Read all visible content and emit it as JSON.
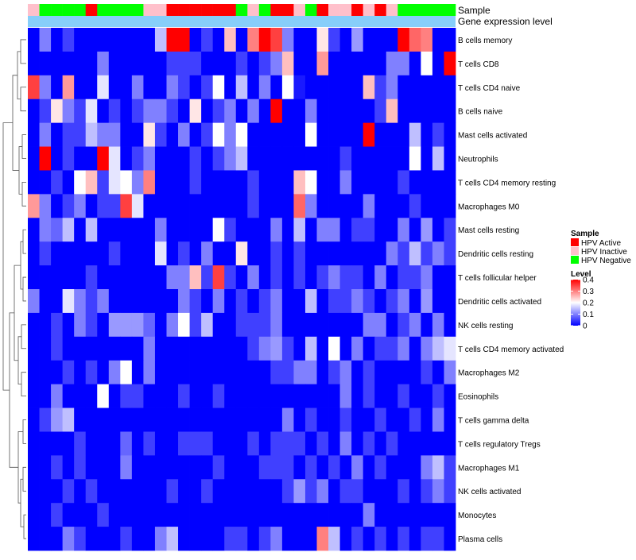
{
  "chart_data": {
    "type": "heatmap",
    "title": "",
    "annotation_rows": [
      "Sample",
      "Gene expression level"
    ],
    "sample_annotation": [
      "HPV Inactive",
      "HPV Negative",
      "HPV Negative",
      "HPV Negative",
      "HPV Negative",
      "HPV Active",
      "HPV Negative",
      "HPV Negative",
      "HPV Negative",
      "HPV Negative",
      "HPV Inactive",
      "HPV Inactive",
      "HPV Active",
      "HPV Active",
      "HPV Active",
      "HPV Active",
      "HPV Active",
      "HPV Active",
      "HPV Negative",
      "HPV Inactive",
      "HPV Negative",
      "HPV Active",
      "HPV Active",
      "HPV Inactive",
      "HPV Negative",
      "HPV Active",
      "HPV Inactive",
      "HPV Inactive",
      "HPV Active",
      "HPV Inactive",
      "HPV Active",
      "HPV Inactive",
      "HPV Negative",
      "HPV Negative",
      "HPV Negative",
      "HPV Negative",
      "HPV Negative"
    ],
    "rows": [
      "B cells memory",
      "T cells CD8",
      "T cells CD4 naive",
      "B cells naive",
      "Mast cells activated",
      "Neutrophils",
      "T cells CD4 memory resting",
      "Macrophages M0",
      "Mast cells resting",
      "Dendritic cells resting",
      "T cells follicular helper",
      "Dendritic cells activated",
      "NK cells resting",
      "T cells CD4 memory activated",
      "Macrophages M2",
      "Eosinophils",
      "T cells gamma delta",
      "T cells regulatory  Tregs",
      "Macrophages M1",
      "NK cells activated",
      "Monocytes",
      "Plasma cells"
    ],
    "values": [
      [
        0,
        0.1,
        0,
        0.05,
        0,
        0,
        0,
        0,
        0,
        0,
        0,
        0.15,
        0.4,
        0.4,
        0,
        0.05,
        0,
        0.25,
        0,
        0.3,
        0.4,
        0.35,
        0.1,
        0,
        0,
        0.22,
        0.05,
        0,
        0.12,
        0,
        0,
        0,
        0.4,
        0.32,
        0.3,
        0,
        0
      ],
      [
        0,
        0,
        0,
        0,
        0,
        0,
        0.1,
        0,
        0,
        0,
        0,
        0,
        0.05,
        0.05,
        0.05,
        0,
        0,
        0,
        0.05,
        0,
        0.05,
        0.1,
        0.25,
        0,
        0,
        0.28,
        0,
        0,
        0,
        0,
        0,
        0.1,
        0.1,
        0,
        0.2,
        0,
        0.4
      ],
      [
        0.35,
        0.1,
        0,
        0.28,
        0,
        0,
        0.18,
        0,
        0,
        0.1,
        0,
        0,
        0.1,
        0.05,
        0,
        0.05,
        0.2,
        0,
        0.15,
        0,
        0.1,
        0,
        0.2,
        0.02,
        0,
        0,
        0,
        0,
        0,
        0.25,
        0.05,
        0.1,
        0,
        0,
        0,
        0,
        0
      ],
      [
        0,
        0.05,
        0.22,
        0.1,
        0.05,
        0.18,
        0,
        0.05,
        0,
        0.05,
        0.1,
        0.1,
        0.05,
        0,
        0.22,
        0,
        0.05,
        0.1,
        0,
        0.1,
        0,
        0.4,
        0,
        0,
        0.1,
        0,
        0,
        0,
        0,
        0,
        0.05,
        0.25,
        0,
        0,
        0,
        0,
        0
      ],
      [
        0,
        0.1,
        0,
        0.05,
        0.05,
        0.15,
        0.1,
        0.1,
        0,
        0,
        0.22,
        0.05,
        0,
        0.1,
        0,
        0.05,
        0.2,
        0.1,
        0.2,
        0,
        0,
        0,
        0,
        0,
        0.2,
        0,
        0,
        0,
        0,
        0.4,
        0,
        0,
        0,
        0.15,
        0,
        0.05,
        0
      ],
      [
        0,
        0.4,
        0,
        0.05,
        0,
        0,
        0.4,
        0.18,
        0,
        0.05,
        0.1,
        0,
        0,
        0,
        0.05,
        0,
        0.05,
        0.1,
        0.15,
        0,
        0,
        0,
        0,
        0,
        0,
        0,
        0,
        0.05,
        0,
        0,
        0,
        0,
        0,
        0.2,
        0,
        0.15,
        0
      ],
      [
        0,
        0,
        0.05,
        0,
        0.2,
        0.25,
        0.05,
        0.18,
        0.2,
        0.1,
        0.3,
        0,
        0,
        0,
        0.05,
        0,
        0,
        0,
        0,
        0.05,
        0,
        0,
        0,
        0.25,
        0.2,
        0,
        0,
        0.1,
        0,
        0,
        0,
        0,
        0.05,
        0,
        0,
        0,
        0
      ],
      [
        0.28,
        0.1,
        0,
        0.05,
        0.1,
        0,
        0.05,
        0.05,
        0.35,
        0.18,
        0,
        0,
        0,
        0,
        0,
        0,
        0,
        0,
        0,
        0.05,
        0,
        0,
        0,
        0.32,
        0.1,
        0,
        0,
        0,
        0,
        0.1,
        0,
        0,
        0,
        0.05,
        0,
        0,
        0
      ],
      [
        0,
        0.1,
        0.08,
        0.15,
        0,
        0.15,
        0,
        0,
        0,
        0,
        0,
        0.1,
        0,
        0,
        0,
        0,
        0.2,
        0.05,
        0,
        0,
        0,
        0.1,
        0,
        0.15,
        0,
        0.1,
        0.1,
        0,
        0.05,
        0.05,
        0,
        0,
        0.1,
        0,
        0.12,
        0,
        0.05
      ],
      [
        0,
        0.05,
        0,
        0,
        0,
        0,
        0,
        0.05,
        0,
        0,
        0,
        0.18,
        0,
        0.05,
        0,
        0.1,
        0,
        0,
        0.22,
        0,
        0,
        0.05,
        0,
        0.05,
        0,
        0,
        0,
        0,
        0,
        0,
        0,
        0.1,
        0.05,
        0.15,
        0.05,
        0.1,
        0.05
      ],
      [
        0,
        0,
        0,
        0,
        0,
        0.05,
        0,
        0,
        0,
        0,
        0,
        0,
        0.1,
        0.1,
        0.25,
        0.05,
        0.35,
        0.05,
        0,
        0.1,
        0,
        0.05,
        0,
        0.05,
        0,
        0.05,
        0.1,
        0.05,
        0.05,
        0,
        0.1,
        0,
        0.05,
        0.05,
        0.1,
        0,
        0
      ],
      [
        0.1,
        0,
        0,
        0.18,
        0.1,
        0.05,
        0.1,
        0,
        0,
        0,
        0,
        0,
        0,
        0.1,
        0.05,
        0,
        0.1,
        0,
        0.05,
        0,
        0.05,
        0.1,
        0,
        0,
        0.15,
        0,
        0.05,
        0.05,
        0.1,
        0.05,
        0,
        0.05,
        0.1,
        0,
        0.12,
        0,
        0
      ],
      [
        0,
        0,
        0.05,
        0,
        0.1,
        0.05,
        0,
        0.12,
        0.12,
        0.12,
        0.08,
        0,
        0.1,
        0.2,
        0.05,
        0.15,
        0,
        0,
        0.05,
        0.05,
        0.05,
        0.1,
        0,
        0,
        0,
        0,
        0,
        0,
        0,
        0.1,
        0.1,
        0,
        0.05,
        0.1,
        0,
        0.1,
        0
      ],
      [
        0,
        0,
        0.05,
        0,
        0,
        0,
        0,
        0,
        0,
        0,
        0.1,
        0,
        0,
        0,
        0,
        0,
        0,
        0,
        0,
        0.05,
        0.1,
        0.12,
        0.05,
        0,
        0.15,
        0,
        0.2,
        0,
        0.1,
        0,
        0.05,
        0.05,
        0.1,
        0,
        0.1,
        0.15,
        0.18
      ],
      [
        0,
        0,
        0,
        0.05,
        0,
        0.05,
        0,
        0.1,
        0.2,
        0,
        0.1,
        0,
        0,
        0,
        0,
        0,
        0,
        0,
        0,
        0,
        0,
        0.05,
        0.05,
        0.1,
        0.1,
        0,
        0.05,
        0.1,
        0,
        0.05,
        0,
        0,
        0,
        0,
        0.05,
        0,
        0.1
      ],
      [
        0,
        0,
        0.1,
        0,
        0,
        0,
        0.2,
        0,
        0.05,
        0.05,
        0,
        0,
        0,
        0.05,
        0,
        0,
        0.05,
        0,
        0,
        0,
        0,
        0,
        0,
        0,
        0,
        0,
        0,
        0.1,
        0,
        0.05,
        0,
        0,
        0.05,
        0,
        0,
        0.05,
        0
      ],
      [
        0,
        0.05,
        0.12,
        0.15,
        0,
        0,
        0,
        0,
        0,
        0,
        0,
        0,
        0,
        0,
        0,
        0,
        0,
        0,
        0,
        0,
        0,
        0,
        0.1,
        0,
        0.05,
        0,
        0,
        0.05,
        0,
        0,
        0.05,
        0,
        0,
        0.05,
        0,
        0.1,
        0
      ],
      [
        0,
        0,
        0,
        0,
        0.05,
        0,
        0,
        0,
        0.08,
        0,
        0.05,
        0,
        0,
        0.05,
        0.05,
        0.05,
        0,
        0,
        0,
        0.05,
        0,
        0.05,
        0.05,
        0.05,
        0,
        0.05,
        0,
        0.1,
        0,
        0.05,
        0,
        0.05,
        0,
        0,
        0,
        0,
        0
      ],
      [
        0,
        0,
        0.05,
        0,
        0.05,
        0,
        0,
        0,
        0.1,
        0,
        0,
        0,
        0,
        0,
        0,
        0,
        0.05,
        0,
        0,
        0,
        0.05,
        0.05,
        0.05,
        0,
        0.05,
        0,
        0.05,
        0,
        0.1,
        0,
        0.05,
        0,
        0,
        0,
        0.1,
        0.15,
        0.05
      ],
      [
        0,
        0,
        0,
        0.05,
        0,
        0.05,
        0,
        0,
        0,
        0,
        0,
        0,
        0.05,
        0,
        0,
        0.05,
        0,
        0,
        0,
        0,
        0,
        0,
        0.05,
        0.12,
        0.05,
        0.1,
        0,
        0.05,
        0.05,
        0,
        0,
        0,
        0.05,
        0,
        0.05,
        0.1,
        0.05
      ],
      [
        0,
        0,
        0.05,
        0,
        0,
        0,
        0.05,
        0,
        0,
        0,
        0,
        0,
        0,
        0,
        0,
        0,
        0,
        0,
        0,
        0,
        0,
        0,
        0,
        0,
        0,
        0,
        0,
        0,
        0,
        0.1,
        0,
        0,
        0,
        0,
        0,
        0,
        0
      ],
      [
        0,
        0,
        0,
        0.1,
        0.05,
        0,
        0,
        0,
        0.05,
        0,
        0,
        0.1,
        0.15,
        0,
        0,
        0,
        0,
        0.05,
        0.05,
        0,
        0.05,
        0.1,
        0,
        0,
        0,
        0.3,
        0.15,
        0,
        0.05,
        0,
        0.05,
        0,
        0.05,
        0,
        0.05,
        0.05,
        0
      ]
    ],
    "legend_sample": {
      "title": "Sample",
      "entries": [
        {
          "label": "HPV Active",
          "color": "#FF0000"
        },
        {
          "label": "HPV Inactive",
          "color": "#FFC0CB"
        },
        {
          "label": "HPV Negative",
          "color": "#00FF00"
        }
      ]
    },
    "legend_level": {
      "title": "Level",
      "ticks": [
        "0.4",
        "0.3",
        "0.2",
        "0.1",
        "0"
      ],
      "range": [
        0,
        0.4
      ],
      "colors": {
        "low": "#0000FF",
        "mid": "#FFFFFF",
        "high": "#FF0000"
      }
    },
    "expression_bar_color": "#87CEFA",
    "legend_placement": "right"
  }
}
